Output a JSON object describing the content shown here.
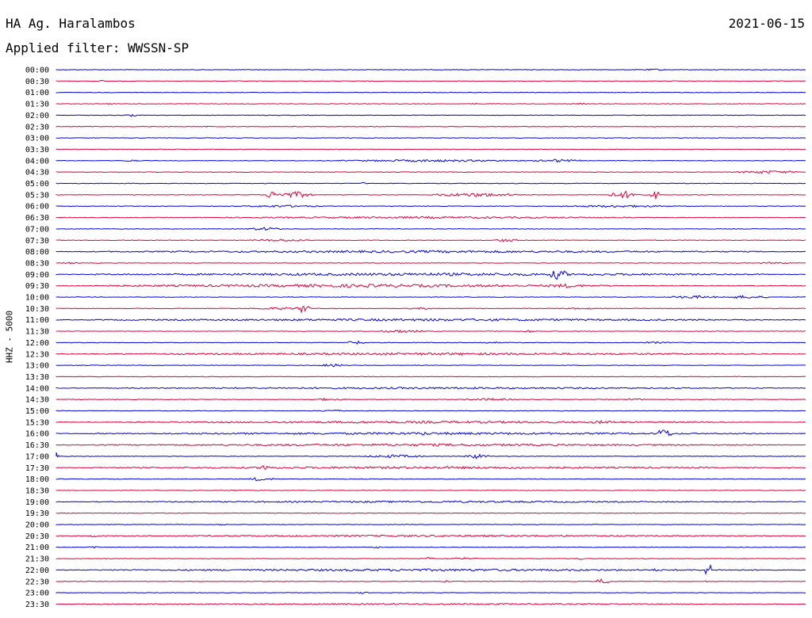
{
  "header": {
    "station": "HA Ag. Haralambos",
    "date": "2021-06-15",
    "filter": "Applied filter: WWSSN-SP",
    "channel": "HHZ - 5000"
  },
  "colors": {
    "even_trace": "#0000e0",
    "odd_trace": "#e0003a",
    "text": "#000000",
    "background": "#ffffff"
  },
  "chart_data": {
    "type": "line",
    "title": "HA Ag. Haralambos",
    "xlabel": "",
    "ylabel": "HHZ - 5000",
    "legend": "none",
    "grid": false,
    "traces": [
      {
        "time": "00:00",
        "bursts": [
          {
            "pos": 0.8,
            "amp": 1.2,
            "width": 0.03
          }
        ]
      },
      {
        "time": "00:30",
        "bursts": [
          {
            "pos": 0.06,
            "amp": 1.2,
            "width": 0.005
          },
          {
            "pos": 0.6,
            "amp": 1.2,
            "width": 0.005
          }
        ]
      },
      {
        "time": "01:00",
        "bursts": []
      },
      {
        "time": "01:30",
        "bursts": [
          {
            "pos": 0.07,
            "amp": 1.0,
            "width": 0.005
          },
          {
            "pos": 0.56,
            "amp": 1.0,
            "width": 0.01
          },
          {
            "pos": 0.7,
            "amp": 1.0,
            "width": 0.01
          }
        ]
      },
      {
        "time": "02:00",
        "bursts": [
          {
            "pos": 0.1,
            "amp": 2.0,
            "width": 0.01
          }
        ]
      },
      {
        "time": "02:30",
        "bursts": [
          {
            "pos": 0.2,
            "amp": 1.0,
            "width": 0.01
          }
        ]
      },
      {
        "time": "03:00",
        "bursts": []
      },
      {
        "time": "03:30",
        "bursts": [
          {
            "pos": 0.14,
            "amp": 1.0,
            "width": 0.005
          }
        ]
      },
      {
        "time": "04:00",
        "bursts": [
          {
            "pos": 0.1,
            "amp": 1.5,
            "width": 0.02
          },
          {
            "pos": 0.5,
            "amp": 1.5,
            "width": 0.25
          },
          {
            "pos": 0.67,
            "amp": 2.0,
            "width": 0.06
          }
        ]
      },
      {
        "time": "04:30",
        "bursts": [
          {
            "pos": 0.95,
            "amp": 2.0,
            "width": 0.08
          }
        ]
      },
      {
        "time": "05:00",
        "bursts": [
          {
            "pos": 0.41,
            "amp": 1.5,
            "width": 0.005
          }
        ]
      },
      {
        "time": "05:30",
        "bursts": [
          {
            "pos": 0.29,
            "amp": 5.0,
            "width": 0.02
          },
          {
            "pos": 0.32,
            "amp": 4.0,
            "width": 0.04
          },
          {
            "pos": 0.56,
            "amp": 2.5,
            "width": 0.12
          },
          {
            "pos": 0.76,
            "amp": 4.5,
            "width": 0.04
          },
          {
            "pos": 0.8,
            "amp": 5.0,
            "width": 0.01
          }
        ]
      },
      {
        "time": "06:00",
        "bursts": [
          {
            "pos": 0.3,
            "amp": 1.5,
            "width": 0.1
          },
          {
            "pos": 0.75,
            "amp": 1.5,
            "width": 0.15
          }
        ]
      },
      {
        "time": "06:30",
        "bursts": [
          {
            "pos": 0.5,
            "amp": 1.3,
            "width": 0.6
          }
        ]
      },
      {
        "time": "07:00",
        "bursts": [
          {
            "pos": 0.28,
            "amp": 2.0,
            "width": 0.05
          }
        ]
      },
      {
        "time": "07:30",
        "bursts": [
          {
            "pos": 0.3,
            "amp": 1.5,
            "width": 0.08
          },
          {
            "pos": 0.6,
            "amp": 2.0,
            "width": 0.03
          }
        ]
      },
      {
        "time": "08:00",
        "bursts": [
          {
            "pos": 0.5,
            "amp": 1.5,
            "width": 0.9
          }
        ]
      },
      {
        "time": "08:30",
        "bursts": [
          {
            "pos": 0.02,
            "amp": 1.2,
            "width": 0.02
          },
          {
            "pos": 0.96,
            "amp": 1.2,
            "width": 0.04
          }
        ]
      },
      {
        "time": "09:00",
        "bursts": [
          {
            "pos": 0.5,
            "amp": 1.8,
            "width": 0.9
          },
          {
            "pos": 0.67,
            "amp": 7.0,
            "width": 0.02
          }
        ]
      },
      {
        "time": "09:30",
        "bursts": [
          {
            "pos": 0.4,
            "amp": 2.0,
            "width": 0.7
          },
          {
            "pos": 0.68,
            "amp": 2.5,
            "width": 0.06
          }
        ]
      },
      {
        "time": "10:00",
        "bursts": [
          {
            "pos": 0.85,
            "amp": 2.0,
            "width": 0.06
          },
          {
            "pos": 0.92,
            "amp": 2.0,
            "width": 0.06
          }
        ]
      },
      {
        "time": "10:30",
        "bursts": [
          {
            "pos": 0.33,
            "amp": 6.0,
            "width": 0.015
          },
          {
            "pos": 0.3,
            "amp": 1.5,
            "width": 0.08
          },
          {
            "pos": 0.49,
            "amp": 1.2,
            "width": 0.04
          },
          {
            "pos": 0.7,
            "amp": 1.2,
            "width": 0.04
          }
        ]
      },
      {
        "time": "11:00",
        "bursts": [
          {
            "pos": 0.5,
            "amp": 1.5,
            "width": 0.9
          }
        ]
      },
      {
        "time": "11:30",
        "bursts": [
          {
            "pos": 0.46,
            "amp": 2.0,
            "width": 0.06
          },
          {
            "pos": 0.63,
            "amp": 2.0,
            "width": 0.01
          }
        ]
      },
      {
        "time": "12:00",
        "bursts": [
          {
            "pos": 0.4,
            "amp": 2.5,
            "width": 0.02
          },
          {
            "pos": 0.58,
            "amp": 1.2,
            "width": 0.03
          },
          {
            "pos": 0.8,
            "amp": 1.2,
            "width": 0.04
          }
        ]
      },
      {
        "time": "12:30",
        "bursts": [
          {
            "pos": 0.5,
            "amp": 1.5,
            "width": 0.9
          }
        ]
      },
      {
        "time": "13:00",
        "bursts": [
          {
            "pos": 0.37,
            "amp": 2.0,
            "width": 0.03
          }
        ]
      },
      {
        "time": "13:30",
        "bursts": []
      },
      {
        "time": "14:00",
        "bursts": [
          {
            "pos": 0.5,
            "amp": 1.2,
            "width": 0.9
          }
        ]
      },
      {
        "time": "14:30",
        "bursts": [
          {
            "pos": 0.36,
            "amp": 1.5,
            "width": 0.05
          },
          {
            "pos": 0.58,
            "amp": 1.5,
            "width": 0.07
          },
          {
            "pos": 0.77,
            "amp": 1.5,
            "width": 0.02
          }
        ]
      },
      {
        "time": "15:00",
        "bursts": [
          {
            "pos": 0.37,
            "amp": 1.5,
            "width": 0.03
          }
        ]
      },
      {
        "time": "15:30",
        "bursts": [
          {
            "pos": 0.5,
            "amp": 1.5,
            "width": 0.8
          },
          {
            "pos": 0.73,
            "amp": 2.0,
            "width": 0.05
          }
        ]
      },
      {
        "time": "16:00",
        "bursts": [
          {
            "pos": 0.5,
            "amp": 1.5,
            "width": 0.9
          },
          {
            "pos": 0.23,
            "amp": 2.0,
            "width": 0.01
          },
          {
            "pos": 0.45,
            "amp": 2.0,
            "width": 0.01
          },
          {
            "pos": 0.49,
            "amp": 2.5,
            "width": 0.015
          },
          {
            "pos": 0.81,
            "amp": 6.0,
            "width": 0.02
          }
        ]
      },
      {
        "time": "16:30",
        "bursts": [
          {
            "pos": 0.5,
            "amp": 1.5,
            "width": 0.9
          }
        ]
      },
      {
        "time": "17:00",
        "bursts": [
          {
            "pos": 0.0,
            "amp": 6.0,
            "width": 0.003
          },
          {
            "pos": 0.45,
            "amp": 2.0,
            "width": 0.08
          },
          {
            "pos": 0.56,
            "amp": 3.0,
            "width": 0.03
          }
        ]
      },
      {
        "time": "17:30",
        "bursts": [
          {
            "pos": 0.5,
            "amp": 1.5,
            "width": 0.9
          },
          {
            "pos": 0.28,
            "amp": 6.0,
            "width": 0.008
          }
        ]
      },
      {
        "time": "18:00",
        "bursts": [
          {
            "pos": 0.27,
            "amp": 2.5,
            "width": 0.02
          },
          {
            "pos": 0.29,
            "amp": 1.5,
            "width": 0.005
          }
        ]
      },
      {
        "time": "18:30",
        "bursts": [
          {
            "pos": 0.24,
            "amp": 1.2,
            "width": 0.01
          }
        ]
      },
      {
        "time": "19:00",
        "bursts": [
          {
            "pos": 0.5,
            "amp": 1.2,
            "width": 0.9
          }
        ]
      },
      {
        "time": "19:30",
        "bursts": []
      },
      {
        "time": "20:00",
        "bursts": [
          {
            "pos": 0.22,
            "amp": 1.2,
            "width": 0.01
          }
        ]
      },
      {
        "time": "20:30",
        "bursts": [
          {
            "pos": 0.5,
            "amp": 1.2,
            "width": 0.9
          },
          {
            "pos": 0.05,
            "amp": 2.5,
            "width": 0.006
          }
        ]
      },
      {
        "time": "21:00",
        "bursts": [
          {
            "pos": 0.05,
            "amp": 2.0,
            "width": 0.01
          },
          {
            "pos": 0.43,
            "amp": 1.5,
            "width": 0.01
          }
        ]
      },
      {
        "time": "21:30",
        "bursts": [
          {
            "pos": 0.5,
            "amp": 3.0,
            "width": 0.008
          },
          {
            "pos": 0.54,
            "amp": 1.5,
            "width": 0.04
          },
          {
            "pos": 0.7,
            "amp": 1.5,
            "width": 0.01
          }
        ]
      },
      {
        "time": "22:00",
        "bursts": [
          {
            "pos": 0.5,
            "amp": 1.5,
            "width": 0.9
          },
          {
            "pos": 0.87,
            "amp": 10.0,
            "width": 0.005
          },
          {
            "pos": 0.8,
            "amp": 2.0,
            "width": 0.005
          }
        ]
      },
      {
        "time": "22:30",
        "bursts": [
          {
            "pos": 0.73,
            "amp": 4.0,
            "width": 0.015
          },
          {
            "pos": 0.87,
            "amp": 1.5,
            "width": 0.005
          },
          {
            "pos": 0.52,
            "amp": 1.2,
            "width": 0.005
          }
        ]
      },
      {
        "time": "23:00",
        "bursts": [
          {
            "pos": 0.41,
            "amp": 1.5,
            "width": 0.01
          }
        ]
      },
      {
        "time": "23:30",
        "bursts": [
          {
            "pos": 0.5,
            "amp": 1.0,
            "width": 0.95
          }
        ]
      }
    ]
  }
}
